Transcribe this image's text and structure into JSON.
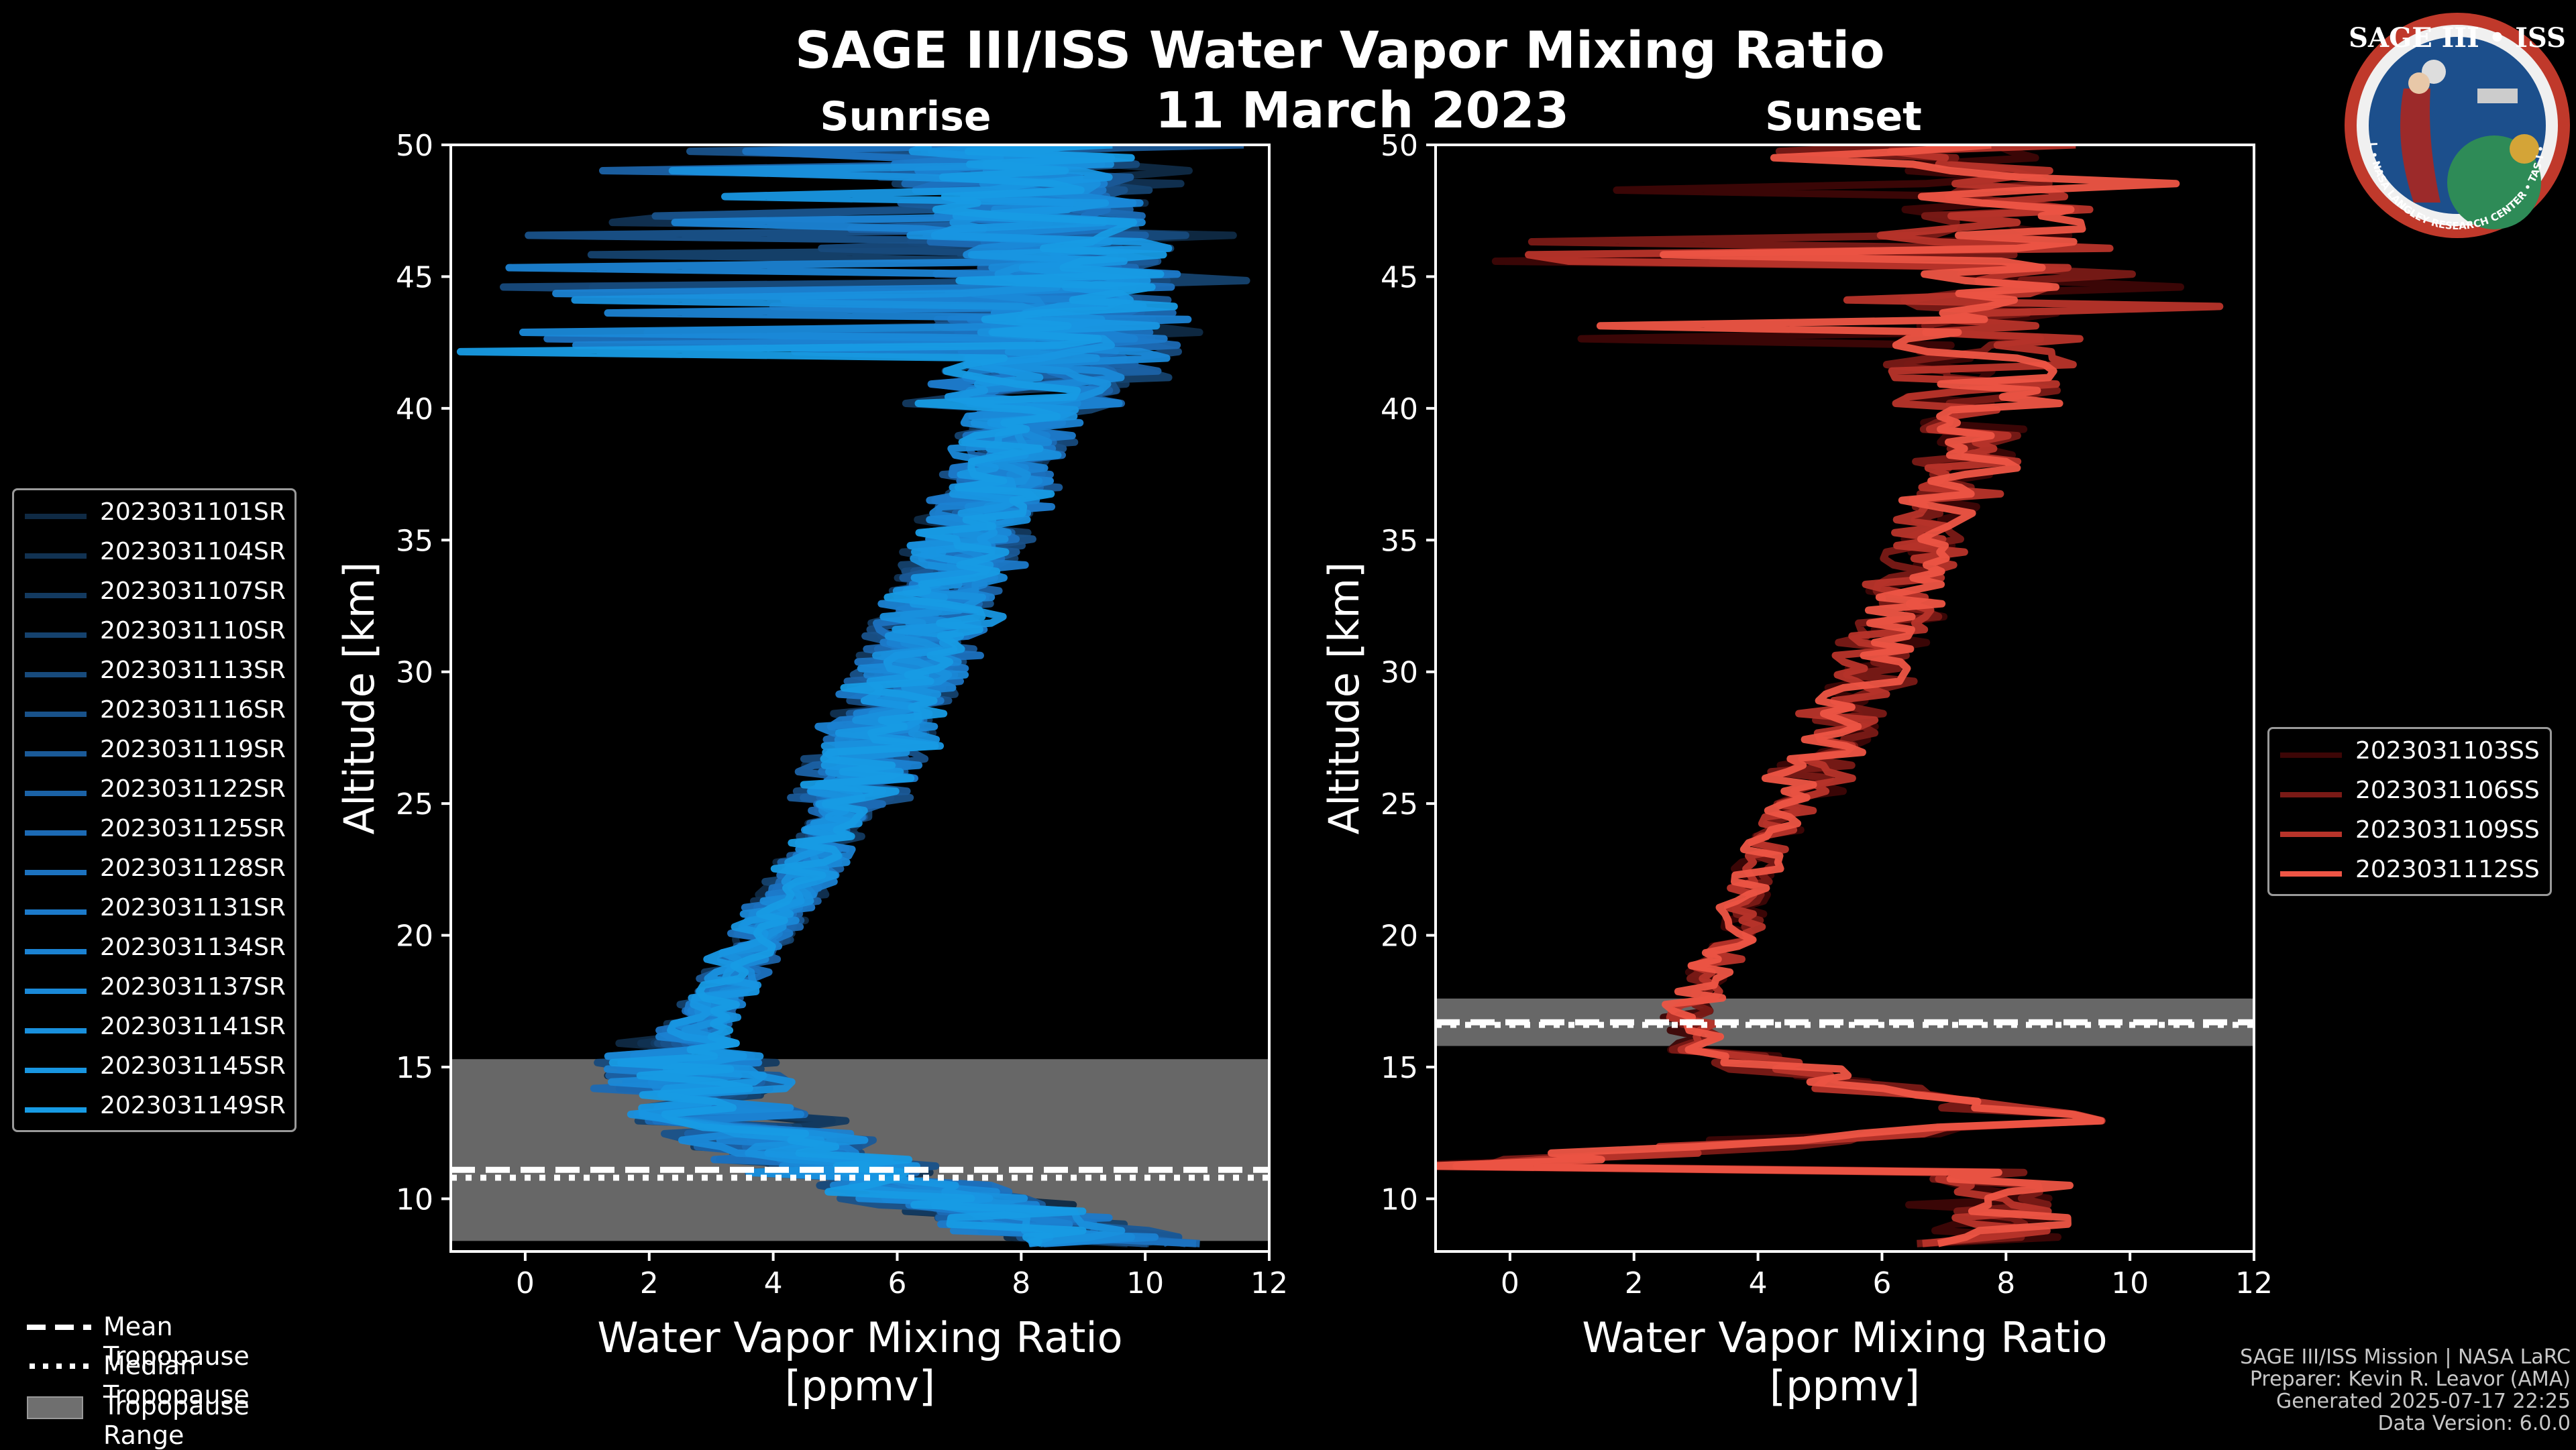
{
  "title": "SAGE III/ISS Water Vapor Mixing Ratio",
  "date": "11 March 2023",
  "logo": {
    "text_top": "SAGE III • ISS",
    "text_bottom": "BALL • NASA LANGLEY RESEARCH CENTER • TAS-I • ESA",
    "colors": {
      "ring": "#c0392b",
      "inner": "#1c4f8c",
      "earth": "#2e8b57",
      "gold": "#d4a437"
    }
  },
  "footer": {
    "line1": "SAGE III/ISS Mission | NASA LaRC",
    "line2": "Preparer: Kevin R. Leavor (AMA)",
    "line3": "Generated 2025-07-17 22:25",
    "line4": "Data Version: 6.0.0"
  },
  "bottom_legend": {
    "mean": "Mean Tropopause",
    "median": "Median Tropopause",
    "range": "Tropopause Range"
  },
  "chart_data": [
    {
      "type": "line",
      "title": "Sunrise",
      "xlabel": "Water Vapor Mixing Ratio\n[ppmv]",
      "ylabel": "Altitude [km]",
      "xlim": [
        -1.2,
        12
      ],
      "ylim": [
        8,
        50
      ],
      "xticks": [
        0,
        2,
        4,
        6,
        8,
        10,
        12
      ],
      "yticks": [
        10,
        15,
        20,
        25,
        30,
        35,
        40,
        45,
        50
      ],
      "tropopause": {
        "mean": 11.1,
        "median": 10.8,
        "range": [
          8.4,
          15.3
        ]
      },
      "profile_mean": [
        [
          9.5,
          8.2
        ],
        [
          6.0,
          10.5
        ],
        [
          4.0,
          12.0
        ],
        [
          2.8,
          14.0
        ],
        [
          2.5,
          15.5
        ],
        [
          2.9,
          17.0
        ],
        [
          3.5,
          19.0
        ],
        [
          4.1,
          21.0
        ],
        [
          4.7,
          23.0
        ],
        [
          5.2,
          25.0
        ],
        [
          5.6,
          27.0
        ],
        [
          6.0,
          29.0
        ],
        [
          6.4,
          31.0
        ],
        [
          6.8,
          33.0
        ],
        [
          7.2,
          35.0
        ],
        [
          7.6,
          37.0
        ],
        [
          8.0,
          39.0
        ],
        [
          8.4,
          41.0
        ],
        [
          8.8,
          43.0
        ],
        [
          8.6,
          45.0
        ],
        [
          8.2,
          47.0
        ],
        [
          8.0,
          49.0
        ],
        [
          8.0,
          50.0
        ]
      ],
      "series": [
        {
          "name": "2023031101SR",
          "color": "#0f2a44"
        },
        {
          "name": "2023031104SR",
          "color": "#113252"
        },
        {
          "name": "2023031107SR",
          "color": "#133a60"
        },
        {
          "name": "2023031110SR",
          "color": "#15426e"
        },
        {
          "name": "2023031113SR",
          "color": "#174a7c"
        },
        {
          "name": "2023031116SR",
          "color": "#19528a"
        },
        {
          "name": "2023031119SR",
          "color": "#1a5a98"
        },
        {
          "name": "2023031122SR",
          "color": "#1b62a6"
        },
        {
          "name": "2023031125SR",
          "color": "#1c6ab4"
        },
        {
          "name": "2023031128SR",
          "color": "#1c72c0"
        },
        {
          "name": "2023031131SR",
          "color": "#1c7aca"
        },
        {
          "name": "2023031134SR",
          "color": "#1b82d2"
        },
        {
          "name": "2023031137SR",
          "color": "#1a89d8"
        },
        {
          "name": "2023031141SR",
          "color": "#1990dd"
        },
        {
          "name": "2023031145SR",
          "color": "#1896e1"
        },
        {
          "name": "2023031149SR",
          "color": "#179be4"
        }
      ]
    },
    {
      "type": "line",
      "title": "Sunset",
      "xlabel": "Water Vapor Mixing Ratio\n[ppmv]",
      "ylabel": "Altitude [km]",
      "xlim": [
        -1.2,
        12
      ],
      "ylim": [
        8,
        50
      ],
      "xticks": [
        0,
        2,
        4,
        6,
        8,
        10,
        12
      ],
      "yticks": [
        10,
        15,
        20,
        25,
        30,
        35,
        40,
        45,
        50
      ],
      "tropopause": {
        "mean": 16.7,
        "median": 16.6,
        "range": [
          15.8,
          17.6
        ]
      },
      "profile_mean": [
        [
          -1.2,
          11.2
        ],
        [
          9.0,
          13.0
        ],
        [
          4.0,
          15.0
        ],
        [
          2.8,
          16.5
        ],
        [
          3.0,
          18.0
        ],
        [
          3.6,
          20.0
        ],
        [
          3.9,
          22.0
        ],
        [
          4.3,
          24.0
        ],
        [
          4.8,
          26.0
        ],
        [
          5.3,
          28.0
        ],
        [
          5.8,
          30.0
        ],
        [
          6.2,
          32.0
        ],
        [
          6.6,
          34.0
        ],
        [
          7.0,
          36.0
        ],
        [
          7.4,
          38.0
        ],
        [
          7.6,
          40.0
        ],
        [
          7.8,
          42.0
        ],
        [
          8.0,
          44.0
        ],
        [
          8.0,
          46.0
        ],
        [
          7.8,
          48.0
        ],
        [
          7.8,
          50.0
        ]
      ],
      "series": [
        {
          "name": "2023031103SS",
          "color": "#3d0606"
        },
        {
          "name": "2023031106SS",
          "color": "#7a1a16"
        },
        {
          "name": "2023031109SS",
          "color": "#b8342a"
        },
        {
          "name": "2023031112SS",
          "color": "#ee5545"
        }
      ]
    }
  ]
}
